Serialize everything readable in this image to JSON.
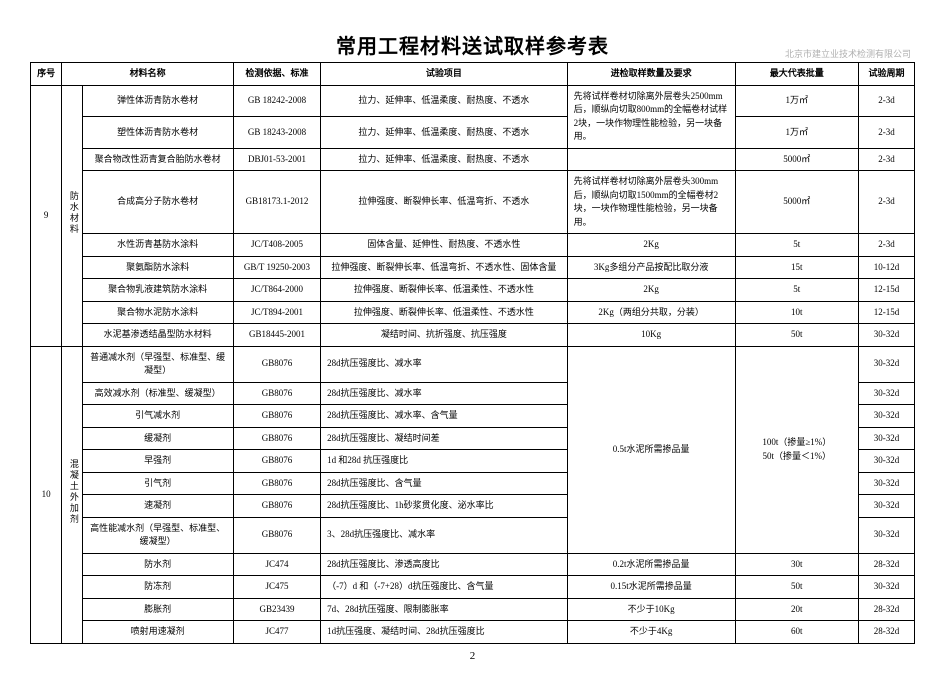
{
  "title": "常用工程材料送试取样参考表",
  "watermark": "北京市建立业技术检测有限公司",
  "page_num": "2",
  "headers": {
    "seq": "序号",
    "name": "材料名称",
    "std": "检测依据、标准",
    "test": "试验项目",
    "qty": "进检取样数量及要求",
    "batch": "最大代表批量",
    "period": "试验周期"
  },
  "group9": {
    "seq": "9",
    "category": "防水材料",
    "rows": [
      {
        "name": "弹性体沥青防水卷材",
        "std": "GB 18242-2008",
        "test": "拉力、延伸率、低温柔度、耐热度、不透水",
        "qty": "先将试样卷材切除离外层卷头2500mm后，顺纵向切取800mm的全幅卷材试样2块，一块作物理性能检验，另一块备用。",
        "batch": "1万㎡",
        "period": "2-3d",
        "qtyspan": 2
      },
      {
        "name": "塑性体沥青防水卷材",
        "std": "GB 18243-2008",
        "test": "拉力、延伸率、低温柔度、耐热度、不透水",
        "batch": "1万㎡",
        "period": "2-3d"
      },
      {
        "name": "聚合物改性沥青复合胎防水卷材",
        "std": "DBJ01-53-2001",
        "test": "拉力、延伸率、低温柔度、耐热度、不透水",
        "qty": "",
        "batch": "5000㎡",
        "period": "2-3d"
      },
      {
        "name": "合成高分子防水卷材",
        "std": "GB18173.1-2012",
        "test": "拉伸强度、断裂伸长率、低温弯折、不透水",
        "qty": "先将试样卷材切除离外层卷头300mm后，顺纵向切取1500mm的全幅卷材2块，一块作物理性能检验，另一块备用。",
        "batch": "5000㎡",
        "period": "2-3d"
      },
      {
        "name": "水性沥青基防水涂料",
        "std": "JC/T408-2005",
        "test": "固体含量、延伸性、耐热度、不透水性",
        "qty": "2Kg",
        "batch": "5t",
        "period": "2-3d"
      },
      {
        "name": "聚氨酯防水涂料",
        "std": "GB/T 19250-2003",
        "test": "拉伸强度、断裂伸长率、低温弯折、不透水性、固体含量",
        "qty": "3Kg多组分产品按配比取分液",
        "batch": "15t",
        "period": "10-12d"
      },
      {
        "name": "聚合物乳液建筑防水涂料",
        "std": "JC/T864-2000",
        "test": "拉伸强度、断裂伸长率、低温柔性、不透水性",
        "qty": "2Kg",
        "batch": "5t",
        "period": "12-15d"
      },
      {
        "name": "聚合物水泥防水涂料",
        "std": "JC/T894-2001",
        "test": "拉伸强度、断裂伸长率、低温柔性、不透水性",
        "qty": "2Kg（两组分共取，分装）",
        "batch": "10t",
        "period": "12-15d"
      },
      {
        "name": "水泥基渗透结晶型防水材料",
        "std": "GB18445-2001",
        "test": "凝结时间、抗折强度、抗压强度",
        "qty": "10Kg",
        "batch": "50t",
        "period": "30-32d"
      }
    ]
  },
  "group10": {
    "seq": "10",
    "category": "混凝土外加剂",
    "rows": [
      {
        "name": "普通减水剂（早强型、标准型、缓凝型）",
        "std": "GB8076",
        "test": "28d抗压强度比、减水率",
        "qty": "0.5t水泥所需掺品量",
        "batch": "100t（掺量≥1%）\n50t（掺量＜1%）",
        "period": "30-32d",
        "qtyspan": 8,
        "batchspan": 8
      },
      {
        "name": "高效减水剂（标准型、缓凝型）",
        "std": "GB8076",
        "test": "28d抗压强度比、减水率",
        "period": "30-32d"
      },
      {
        "name": "引气减水剂",
        "std": "GB8076",
        "test": "28d抗压强度比、减水率、含气量",
        "period": "30-32d"
      },
      {
        "name": "缓凝剂",
        "std": "GB8076",
        "test": "28d抗压强度比、凝结时间差",
        "period": "30-32d"
      },
      {
        "name": "早强剂",
        "std": "GB8076",
        "test": "1d 和28d 抗压强度比",
        "period": "30-32d"
      },
      {
        "name": "引气剂",
        "std": "GB8076",
        "test": "28d抗压强度比、含气量",
        "period": "30-32d"
      },
      {
        "name": "速凝剂",
        "std": "GB8076",
        "test": "28d抗压强度比、1h砂浆贯化度、泌水率比",
        "period": "30-32d"
      },
      {
        "name": "高性能减水剂（早强型、标准型、缓凝型）",
        "std": "GB8076",
        "test": "3、28d抗压强度比、减水率",
        "period": "30-32d"
      },
      {
        "name": "防水剂",
        "std": "JC474",
        "test": "28d抗压强度比、渗透高度比",
        "qty": "0.2t水泥所需掺品量",
        "batch": "30t",
        "period": "28-32d"
      },
      {
        "name": "防冻剂",
        "std": "JC475",
        "test": "（-7）d 和（-7+28）d抗压强度比、含气量",
        "qty": "0.15t水泥所需掺品量",
        "batch": "50t",
        "period": "30-32d"
      },
      {
        "name": "膨胀剂",
        "std": "GB23439",
        "test": "7d、28d抗压强度、限制膨胀率",
        "qty": "不少于10Kg",
        "batch": "20t",
        "period": "28-32d"
      },
      {
        "name": "喷射用速凝剂",
        "std": "JC477",
        "test": "1d抗压强度、凝结时间、28d抗压强度比",
        "qty": "不少于4Kg",
        "batch": "60t",
        "period": "28-32d"
      }
    ]
  }
}
